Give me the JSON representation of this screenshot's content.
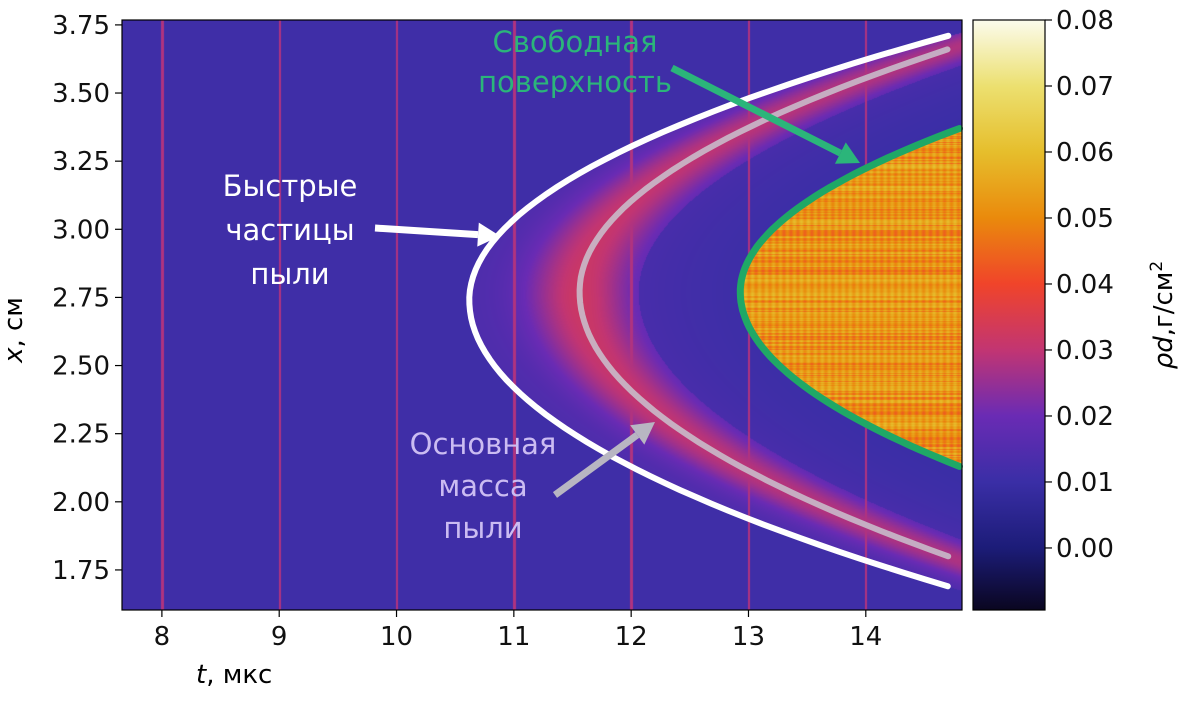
{
  "chart_data": {
    "type": "heatmap",
    "title": "",
    "xlabel": {
      "var": "t",
      "unit": ", мкс"
    },
    "ylabel": {
      "var": "x",
      "unit": ", см"
    },
    "xlim": [
      7.66,
      14.82
    ],
    "ylim": [
      1.603,
      3.768
    ],
    "xticks": [
      "8",
      "9",
      "10",
      "11",
      "12",
      "13",
      "14"
    ],
    "xtick_values": [
      8,
      9,
      10,
      11,
      12,
      13,
      14
    ],
    "yticks": [
      "1.75",
      "2.00",
      "2.25",
      "2.50",
      "2.75",
      "3.00",
      "3.25",
      "3.50",
      "3.75"
    ],
    "ytick_values": [
      1.75,
      2.0,
      2.25,
      2.5,
      2.75,
      3.0,
      3.25,
      3.5,
      3.75
    ],
    "colorbar": {
      "label": {
        "var": "ρd",
        "unit": ",г/см",
        "sup": "2"
      },
      "range": [
        -0.0094,
        0.08
      ],
      "ticks": [
        "0.00",
        "0.01",
        "0.02",
        "0.03",
        "0.04",
        "0.05",
        "0.06",
        "0.07",
        "0.08"
      ],
      "tick_values": [
        0,
        0.01,
        0.02,
        0.03,
        0.04,
        0.05,
        0.06,
        0.07,
        0.08
      ],
      "colormap": [
        [
          -0.0094,
          "#0a0620"
        ],
        [
          0.0,
          "#1c1c78"
        ],
        [
          0.01,
          "#3a2ea6"
        ],
        [
          0.02,
          "#6a2bb4"
        ],
        [
          0.03,
          "#c23572"
        ],
        [
          0.04,
          "#f0442a"
        ],
        [
          0.05,
          "#ea8a0c"
        ],
        [
          0.06,
          "#e6be2c"
        ],
        [
          0.07,
          "#ece070"
        ],
        [
          0.08,
          "#fbfbec"
        ]
      ]
    },
    "background_value": 0.011,
    "core_value": 0.052,
    "main_mass_peak": 0.032,
    "artifact_lines_t": [
      8,
      9,
      10,
      11,
      12,
      13,
      14
    ],
    "curves": [
      {
        "name": "fast-particles-front",
        "color": "#ffffff",
        "t0": 10.62,
        "x0": 2.74,
        "a_upper": 4.34,
        "a_lower": 3.7,
        "x_range": [
          1.69,
          3.71
        ]
      },
      {
        "name": "main-mass-front",
        "color": "#c9c3cf",
        "t0": 11.56,
        "x0": 2.77,
        "a_upper": 3.96,
        "a_lower": 3.34,
        "x_range": [
          1.8,
          3.66
        ]
      },
      {
        "name": "free-surface",
        "color": "#1fa866",
        "t0": 12.93,
        "x0": 2.77,
        "a_upper": 5.19,
        "a_lower": 4.56,
        "x_range": [
          2.13,
          3.37
        ]
      }
    ],
    "annotations": [
      {
        "lines": [
          "Быстрые",
          "частицы",
          "пыли"
        ],
        "color": "#ffffff"
      },
      {
        "lines": [
          "Основная",
          "масса",
          "пыли"
        ],
        "color": "#cbbcf2"
      },
      {
        "lines": [
          "Свободная",
          "поверхность"
        ],
        "color": "#2bb57a"
      }
    ]
  }
}
